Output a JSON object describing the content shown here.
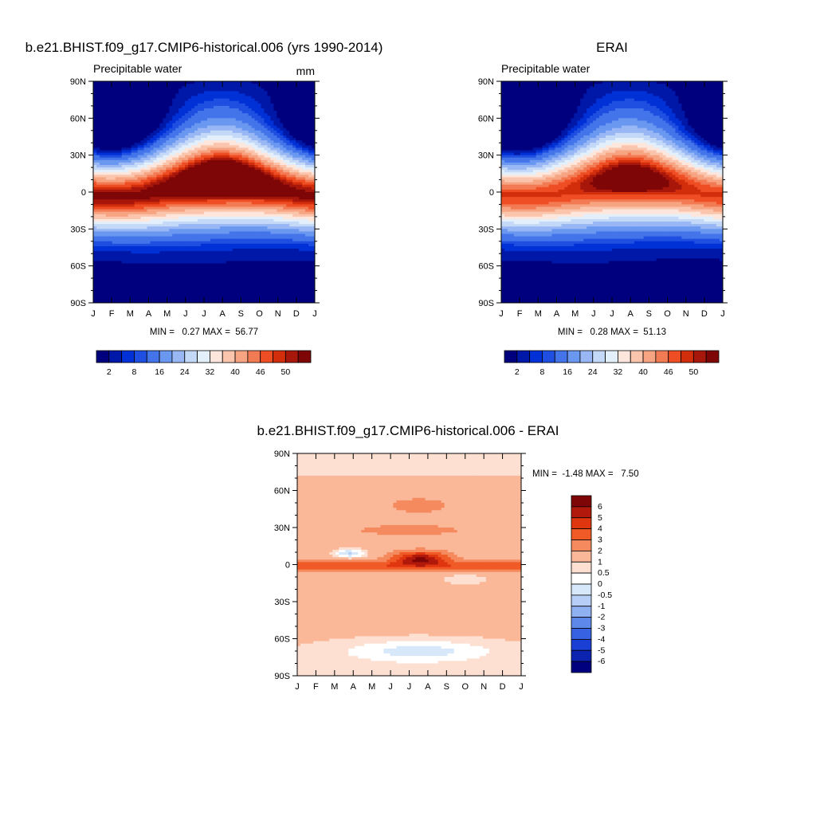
{
  "chart_data": [
    {
      "type": "heatmap",
      "title": "b.e21.BHIST.f09_g17.CMIP6-historical.006 (yrs 1990-2014)",
      "subtitle": "Precipitable water",
      "units": "mm",
      "x": [
        "J",
        "F",
        "M",
        "A",
        "M",
        "J",
        "J",
        "A",
        "S",
        "O",
        "N",
        "D",
        "J"
      ],
      "y": [
        "90N",
        "60N",
        "30N",
        "0",
        "30S",
        "60S",
        "90S"
      ],
      "stats": "MIN =   0.27 MAX =  56.77",
      "field": {
        "lat_range": [
          -90,
          90
        ],
        "months": 13,
        "equator_peak_value": 56.77,
        "min_value": 0.27,
        "itcz_max_month": "Aug"
      },
      "colorbar": {
        "orientation": "horizontal",
        "labels": [
          "2",
          "8",
          "16",
          "24",
          "32",
          "40",
          "46",
          "50"
        ],
        "colors": [
          "#00007f",
          "#0018a8",
          "#0031d6",
          "#1f4fe0",
          "#4474ea",
          "#6a98f0",
          "#98b7f4",
          "#c4d8f7",
          "#e3effb",
          "#fde6dc",
          "#fbc5ad",
          "#f7a483",
          "#f37b54",
          "#ef4e24",
          "#d22e0c",
          "#a8170b",
          "#7e0606"
        ]
      }
    },
    {
      "type": "heatmap",
      "title": "ERAI",
      "subtitle": "Precipitable water",
      "x": [
        "J",
        "F",
        "M",
        "A",
        "M",
        "J",
        "J",
        "A",
        "S",
        "O",
        "N",
        "D",
        "J"
      ],
      "y": [
        "90N",
        "60N",
        "30N",
        "0",
        "30S",
        "60S",
        "90S"
      ],
      "stats": "MIN =   0.28 MAX =  51.13",
      "field": {
        "lat_range": [
          -90,
          90
        ],
        "months": 13,
        "equator_peak_value": 51.13,
        "min_value": 0.28,
        "itcz_max_month": "Aug"
      },
      "colorbar": {
        "orientation": "horizontal",
        "labels": [
          "2",
          "8",
          "16",
          "24",
          "32",
          "40",
          "46",
          "50"
        ],
        "colors": [
          "#00007f",
          "#0018a8",
          "#0031d6",
          "#1f4fe0",
          "#4474ea",
          "#6a98f0",
          "#98b7f4",
          "#c4d8f7",
          "#e3effb",
          "#fde6dc",
          "#fbc5ad",
          "#f7a483",
          "#f37b54",
          "#ef4e24",
          "#d22e0c",
          "#a8170b",
          "#7e0606"
        ]
      }
    },
    {
      "type": "heatmap",
      "title": "b.e21.BHIST.f09_g17.CMIP6-historical.006 - ERAI",
      "x": [
        "J",
        "F",
        "M",
        "A",
        "M",
        "J",
        "J",
        "A",
        "S",
        "O",
        "N",
        "D",
        "J"
      ],
      "y": [
        "90N",
        "60N",
        "30N",
        "0",
        "30S",
        "60S",
        "90S"
      ],
      "stats": "MIN =  -1.48 MAX =   7.50",
      "field": {
        "lat_range": [
          -90,
          90
        ],
        "months": 13,
        "max_value": 7.5,
        "min_value": -1.48
      },
      "colorbar": {
        "orientation": "vertical",
        "labels": [
          "6",
          "5",
          "4",
          "3",
          "2",
          "1",
          "0.5",
          "0",
          "-0.5",
          "-1",
          "-2",
          "-3",
          "-4",
          "-5",
          "-6"
        ],
        "colors": [
          "#7e0606",
          "#b0190b",
          "#df360f",
          "#ef5a27",
          "#f58a5e",
          "#fbb899",
          "#fde0d2",
          "#ffffff",
          "#d8e8fb",
          "#b7cff6",
          "#8fb0f1",
          "#5e88ea",
          "#3762e2",
          "#1a3fd4",
          "#0c23b0",
          "#00007f"
        ]
      }
    }
  ]
}
